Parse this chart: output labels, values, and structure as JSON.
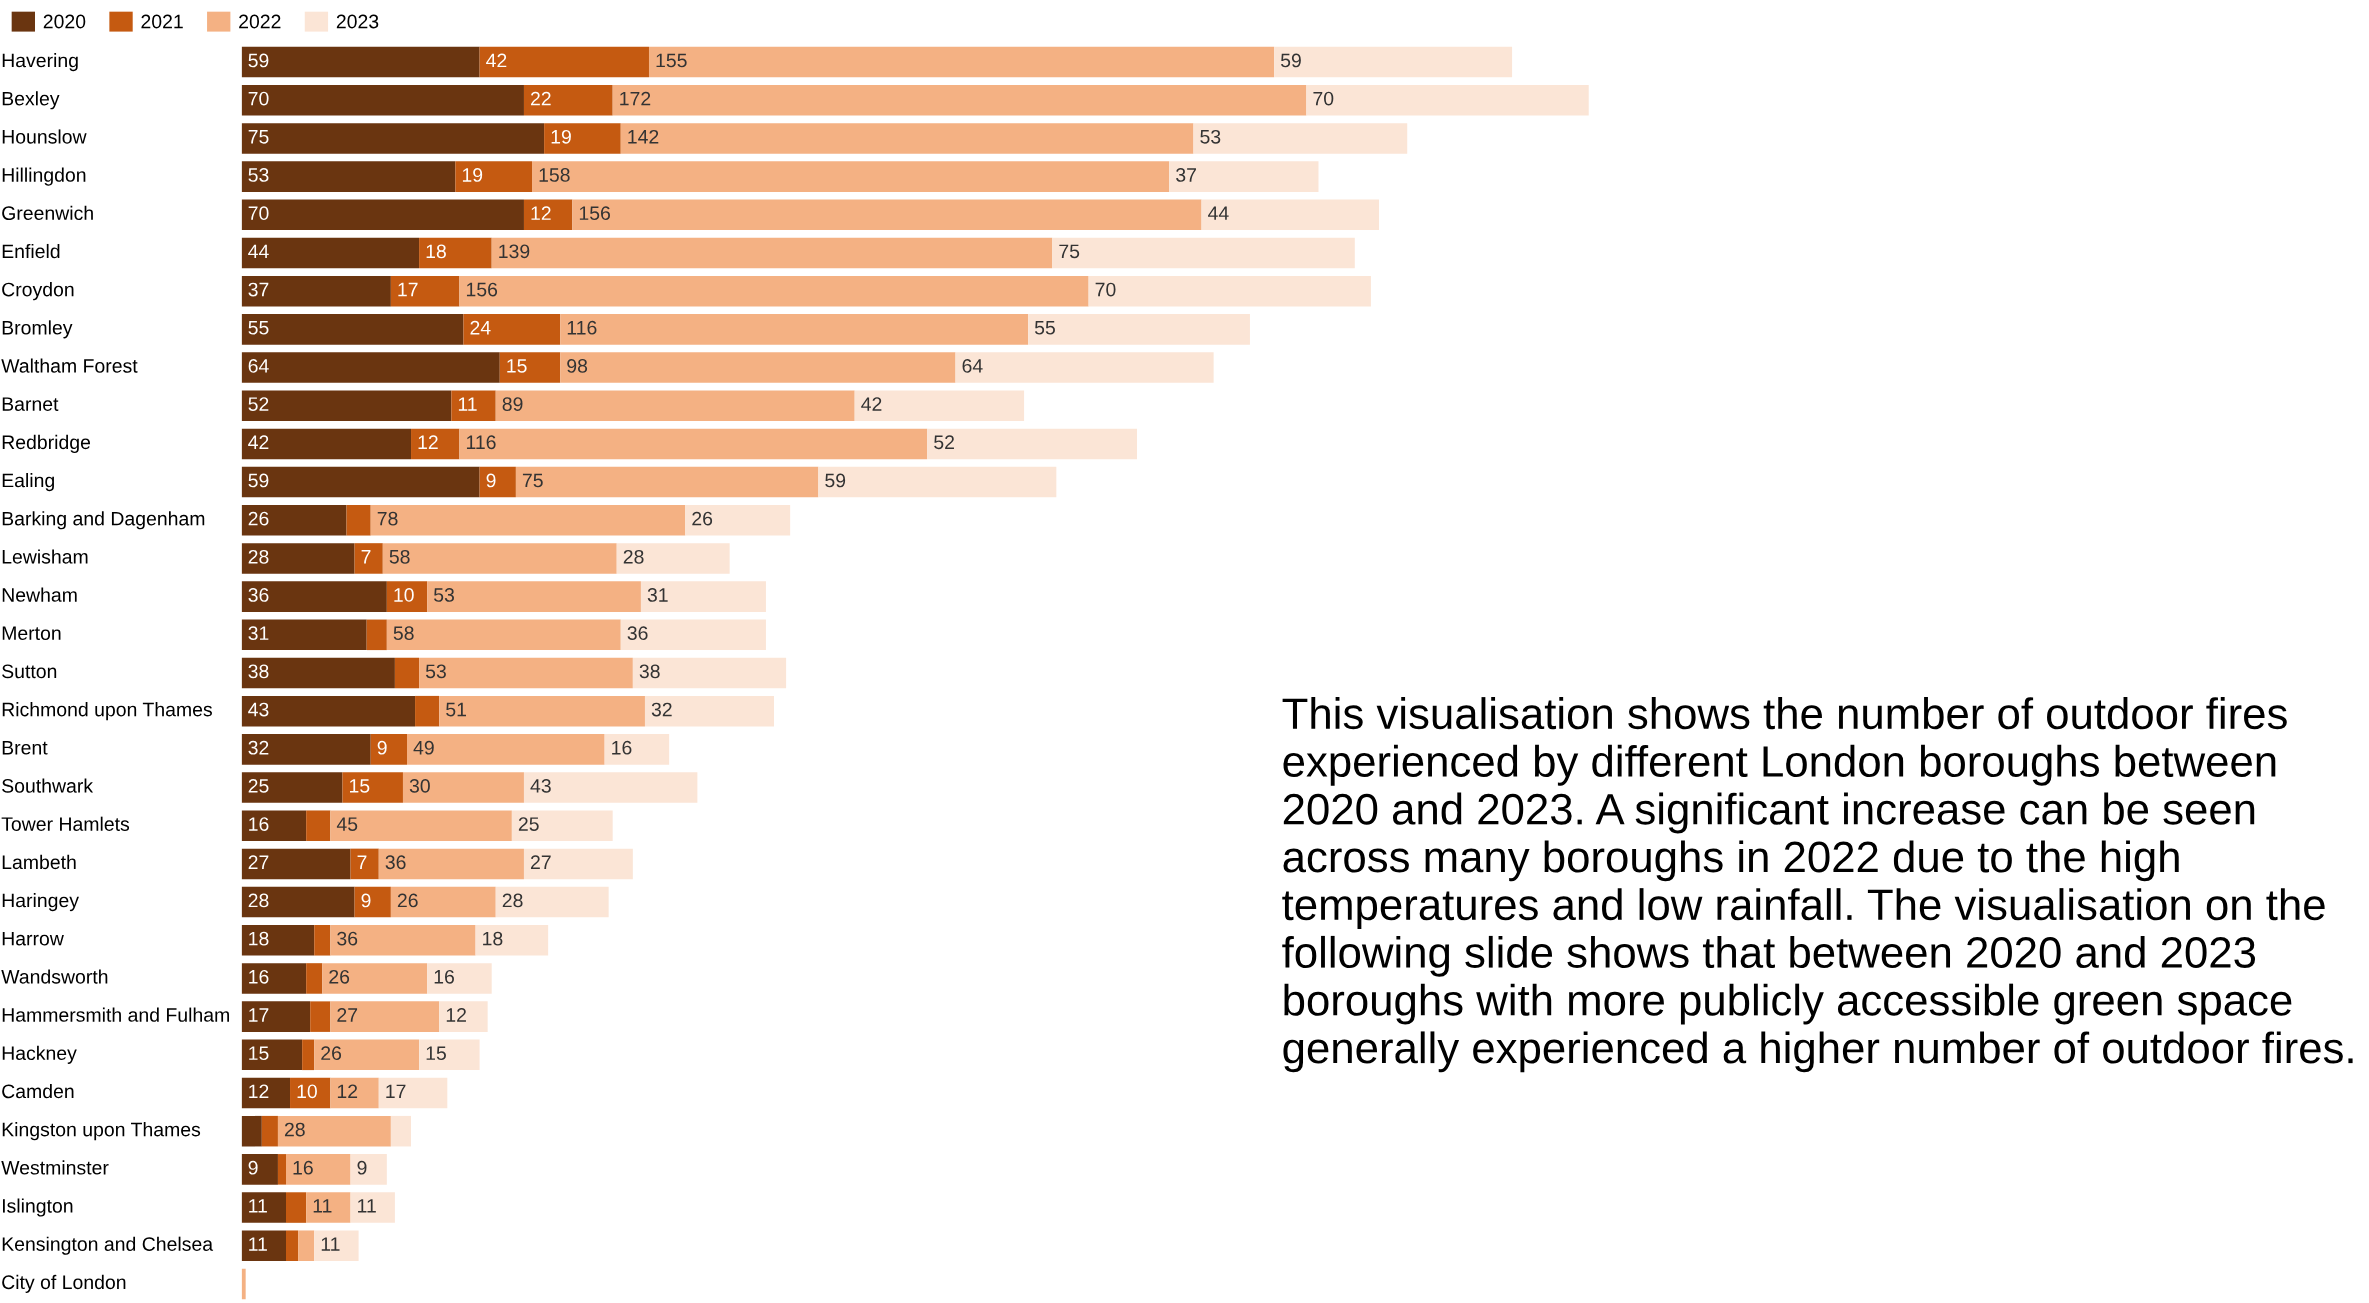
{
  "chart_data": {
    "type": "bar",
    "orientation": "horizontal",
    "stacked": true,
    "legend": "top left",
    "categories": [
      "Havering",
      "Bexley",
      "Hounslow",
      "Hillingdon",
      "Greenwich",
      "Enfield",
      "Croydon",
      "Bromley",
      "Waltham Forest",
      "Barnet",
      "Redbridge",
      "Ealing",
      "Barking and Dagenham",
      "Lewisham",
      "Newham",
      "Merton",
      "Sutton",
      "Richmond upon Thames",
      "Brent",
      "Southwark",
      "Tower Hamlets",
      "Lambeth",
      "Haringey",
      "Harrow",
      "Wandsworth",
      "Hammersmith and Fulham",
      "Hackney",
      "Camden",
      "Kingston upon Thames",
      "Westminster",
      "Islington",
      "Kensington and Chelsea",
      "City of London"
    ],
    "series": [
      {
        "name": "2020",
        "color": "#6a3510",
        "values": [
          59,
          70,
          75,
          53,
          70,
          44,
          37,
          55,
          64,
          52,
          42,
          59,
          26,
          28,
          36,
          31,
          38,
          43,
          32,
          25,
          16,
          27,
          28,
          18,
          16,
          17,
          15,
          12,
          5,
          9,
          11,
          11,
          0
        ],
        "value_labels": [
          "59",
          "70",
          "75",
          "53",
          "70",
          "44",
          "37",
          "55",
          "64",
          "52",
          "42",
          "59",
          "26",
          "28",
          "36",
          "31",
          "38",
          "43",
          "32",
          "25",
          "16",
          "27",
          "28",
          "18",
          "16",
          "17",
          "15",
          "12",
          null,
          "9",
          "11",
          "11",
          null
        ]
      },
      {
        "name": "2021",
        "color": "#c55a11",
        "values": [
          42,
          22,
          19,
          19,
          12,
          18,
          17,
          24,
          15,
          11,
          12,
          9,
          6,
          7,
          10,
          5,
          6,
          6,
          9,
          15,
          6,
          7,
          9,
          4,
          4,
          5,
          3,
          10,
          4,
          2,
          5,
          3,
          0
        ],
        "value_labels": [
          "42",
          "22",
          "19",
          "19",
          "12",
          "18",
          "17",
          "24",
          "15",
          "11",
          "12",
          "9",
          null,
          "7",
          "10",
          null,
          null,
          null,
          "9",
          "15",
          null,
          "7",
          "9",
          null,
          null,
          null,
          null,
          "10",
          null,
          null,
          null,
          null,
          null
        ]
      },
      {
        "name": "2022",
        "color": "#f4b183",
        "values": [
          155,
          172,
          142,
          158,
          156,
          139,
          156,
          116,
          98,
          89,
          116,
          75,
          78,
          58,
          53,
          58,
          53,
          51,
          49,
          30,
          45,
          36,
          26,
          36,
          26,
          27,
          26,
          12,
          28,
          16,
          11,
          4,
          1
        ],
        "value_labels": [
          "155",
          "172",
          "142",
          "158",
          "156",
          "139",
          "156",
          "116",
          "98",
          "89",
          "116",
          "75",
          "78",
          "58",
          "53",
          "58",
          "53",
          "51",
          "49",
          "30",
          "45",
          "36",
          "26",
          "36",
          "26",
          "27",
          "26",
          "12",
          "28",
          "16",
          "11",
          null,
          null
        ]
      },
      {
        "name": "2023",
        "color": "#fbe5d6",
        "values": [
          59,
          70,
          53,
          37,
          44,
          75,
          70,
          55,
          64,
          42,
          52,
          59,
          26,
          28,
          31,
          36,
          38,
          32,
          16,
          43,
          25,
          27,
          28,
          18,
          16,
          12,
          15,
          17,
          5,
          9,
          11,
          11,
          0
        ],
        "value_labels": [
          "59",
          "70",
          "53",
          "37",
          "44",
          "75",
          "70",
          "55",
          "64",
          "42",
          "52",
          "59",
          "26",
          "28",
          "31",
          "36",
          "38",
          "32",
          "16",
          "43",
          "25",
          "27",
          "28",
          "18",
          "16",
          "12",
          "15",
          "17",
          null,
          "9",
          "11",
          "11",
          null
        ]
      }
    ],
    "annotations": [
      "This visualisation shows the number of outdoor fires experienced by different London boroughs between 2020 and 2023. A significant increase can be seen across many boroughs in 2022 due to the high temperatures and low rainfall. The visualisation on the following slide shows that between 2020 and 2023 boroughs with more publicly accessible green space generally experienced a higher number of outdoor fires."
    ]
  }
}
